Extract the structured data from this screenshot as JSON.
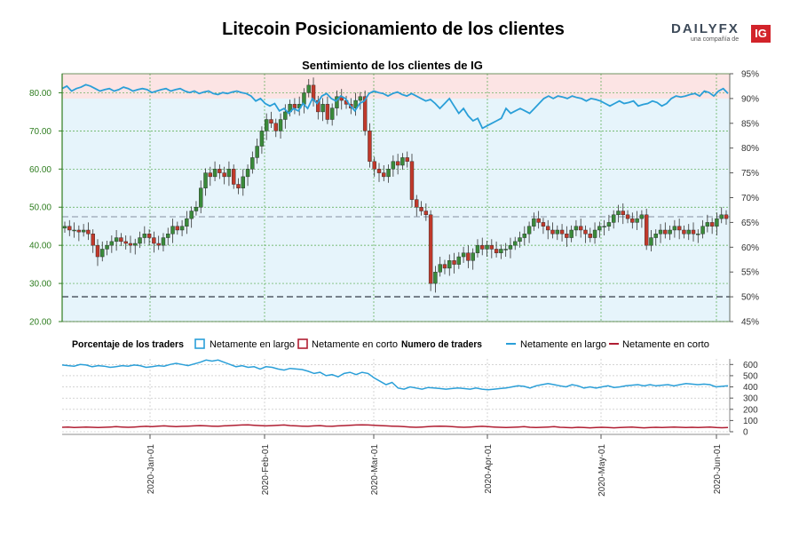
{
  "title": "Litecoin Posicionamiento de los clientes",
  "logo": {
    "word_daily": "DAILY",
    "word_fx": "FX",
    "sub": "una compañía de",
    "badge": "IG"
  },
  "colors": {
    "long": "#2a9fd8",
    "short": "#b01e32",
    "up_candle": "#3a8a3a",
    "down_candle": "#c0392b",
    "long_zone": "#e6f4fb",
    "short_zone": "#fce4e4",
    "left_axis": "#2e7d1f"
  },
  "chart_data": [
    {
      "type": "candlestick",
      "title": "Sentimiento de los clientes de IG",
      "ylim": [
        20,
        85
      ],
      "y_ticks": [
        "20.00",
        "30.00",
        "40.00",
        "50.00",
        "60.00",
        "70.00",
        "80.00"
      ],
      "y2_ticks": [
        "45%",
        "50%",
        "55%",
        "60%",
        "65%",
        "70%",
        "75%",
        "80%",
        "85%",
        "90%",
        "95%"
      ],
      "y2lim": [
        45,
        95
      ],
      "x_ticks": [
        "2020-Jan-01",
        "2020-Feb-01",
        "2020-Mar-01",
        "2020-Apr-01",
        "2020-May-01",
        "2020-Jun-01"
      ],
      "price_close": [
        45,
        44,
        44,
        43.5,
        44,
        43,
        40,
        37,
        39,
        40,
        41,
        42,
        41,
        40.5,
        40,
        40.5,
        42,
        43,
        42,
        40.5,
        40,
        42,
        43,
        45,
        44,
        45,
        47,
        49,
        50,
        55,
        59,
        58,
        60,
        59,
        58,
        60,
        56,
        55,
        58,
        60,
        63,
        66,
        70,
        73,
        72,
        70,
        73,
        75,
        77,
        76,
        77,
        80,
        82,
        78,
        75,
        77,
        73,
        76,
        79,
        78,
        77,
        76,
        78,
        79,
        70,
        62,
        60,
        59,
        58,
        60,
        62,
        61,
        63,
        62,
        52,
        50,
        49,
        48,
        30,
        33,
        35,
        34,
        36,
        35,
        37,
        38,
        36,
        38,
        40,
        39,
        40,
        39,
        38,
        39,
        39,
        40,
        41,
        42,
        43,
        45,
        47,
        46,
        45,
        44,
        43,
        44,
        43,
        42,
        44,
        45,
        44,
        43,
        42,
        44,
        45,
        45,
        46,
        48,
        49,
        48,
        47,
        46,
        47,
        48,
        40,
        42,
        43,
        44,
        43,
        44,
        45,
        44,
        43,
        44,
        43,
        43,
        45,
        46,
        45,
        47,
        48,
        47
      ],
      "long_pct": [
        92,
        92.5,
        91.5,
        92,
        92.3,
        92.8,
        92.5,
        92,
        91.5,
        91.8,
        92,
        91.5,
        91.8,
        92.3,
        92,
        91.5,
        91.8,
        92,
        91.8,
        91.2,
        91.5,
        91.8,
        92,
        91.5,
        91.8,
        92,
        91.5,
        91.2,
        91.5,
        91,
        91.3,
        91.5,
        91,
        90.8,
        91.2,
        91,
        91.3,
        91.5,
        91.2,
        91,
        90.5,
        89.5,
        90,
        89,
        88.5,
        89,
        87.5,
        88,
        87,
        88,
        87.5,
        89,
        88,
        90,
        89,
        90.5,
        91,
        90,
        89.5,
        90.5,
        90,
        88.5,
        87.5,
        89,
        89.5,
        91,
        91.5,
        91.2,
        91,
        90.5,
        91,
        91.3,
        90.8,
        90.5,
        91,
        90.5,
        90,
        89.5,
        89.8,
        89,
        88,
        89,
        90,
        88.5,
        87,
        88,
        86.5,
        85.5,
        86,
        84,
        84.5,
        85,
        85.5,
        86,
        88,
        87,
        87.5,
        88,
        87.5,
        87,
        88,
        89,
        90,
        90.5,
        90,
        90.5,
        90.3,
        90,
        90.5,
        90.2,
        90,
        89.5,
        90,
        89.8,
        89.5,
        89,
        88.5,
        89,
        89.5,
        89,
        89.2,
        89.5,
        88.5,
        88.8,
        89,
        89.5,
        89.2,
        88.5,
        89,
        90,
        90.5,
        90.3,
        90.5,
        90.8,
        91,
        90.5,
        91.5,
        91.2,
        90.5,
        91.5,
        92,
        91
      ],
      "legend": {
        "pct_title": "Porcentaje de los traders",
        "pct_long": "Netamente en largo",
        "pct_short": "Netamente en corto",
        "num_title": "Numero de traders",
        "num_long": "Netamente en largo",
        "num_short": "Netamente en corto"
      }
    },
    {
      "type": "line",
      "ylim": [
        0,
        650
      ],
      "y_ticks": [
        "0",
        "100",
        "200",
        "300",
        "400",
        "500",
        "600"
      ],
      "series": [
        {
          "role": "long",
          "values": [
            595,
            590,
            585,
            600,
            595,
            580,
            590,
            585,
            575,
            580,
            590,
            585,
            595,
            590,
            575,
            580,
            590,
            585,
            600,
            610,
            600,
            590,
            605,
            620,
            640,
            630,
            640,
            620,
            600,
            580,
            590,
            575,
            580,
            560,
            580,
            575,
            560,
            550,
            565,
            560,
            555,
            540,
            520,
            530,
            500,
            510,
            490,
            520,
            530,
            510,
            530,
            520,
            480,
            450,
            420,
            440,
            390,
            380,
            400,
            390,
            380,
            395,
            390,
            385,
            380,
            385,
            390,
            385,
            380,
            390,
            380,
            375,
            380,
            385,
            390,
            400,
            410,
            405,
            390,
            410,
            420,
            430,
            420,
            410,
            400,
            420,
            410,
            390,
            400,
            390,
            400,
            410,
            395,
            400,
            410,
            415,
            420,
            410,
            420,
            410,
            415,
            420,
            410,
            420,
            430,
            425,
            420,
            425,
            420,
            400,
            405,
            410
          ]
        },
        {
          "role": "short",
          "values": [
            40,
            42,
            38,
            40,
            42,
            40,
            38,
            40,
            42,
            45,
            42,
            40,
            42,
            45,
            48,
            45,
            50,
            52,
            48,
            45,
            48,
            50,
            52,
            55,
            52,
            50,
            48,
            52,
            55,
            58,
            60,
            62,
            58,
            55,
            52,
            55,
            58,
            60,
            55,
            52,
            50,
            48,
            52,
            55,
            50,
            48,
            52,
            55,
            58,
            60,
            62,
            60,
            58,
            55,
            52,
            50,
            48,
            45,
            42,
            40,
            42,
            45,
            48,
            50,
            48,
            45,
            42,
            40,
            42,
            45,
            48,
            45,
            42,
            40,
            38,
            40,
            42,
            45,
            40,
            38,
            40,
            42,
            45,
            40,
            38,
            36,
            40,
            38,
            35,
            38,
            40,
            38,
            35,
            38,
            40,
            42,
            38,
            35,
            38,
            40,
            38,
            40,
            42,
            40,
            38,
            40,
            38,
            40,
            42,
            38,
            36,
            38
          ]
        }
      ]
    }
  ]
}
